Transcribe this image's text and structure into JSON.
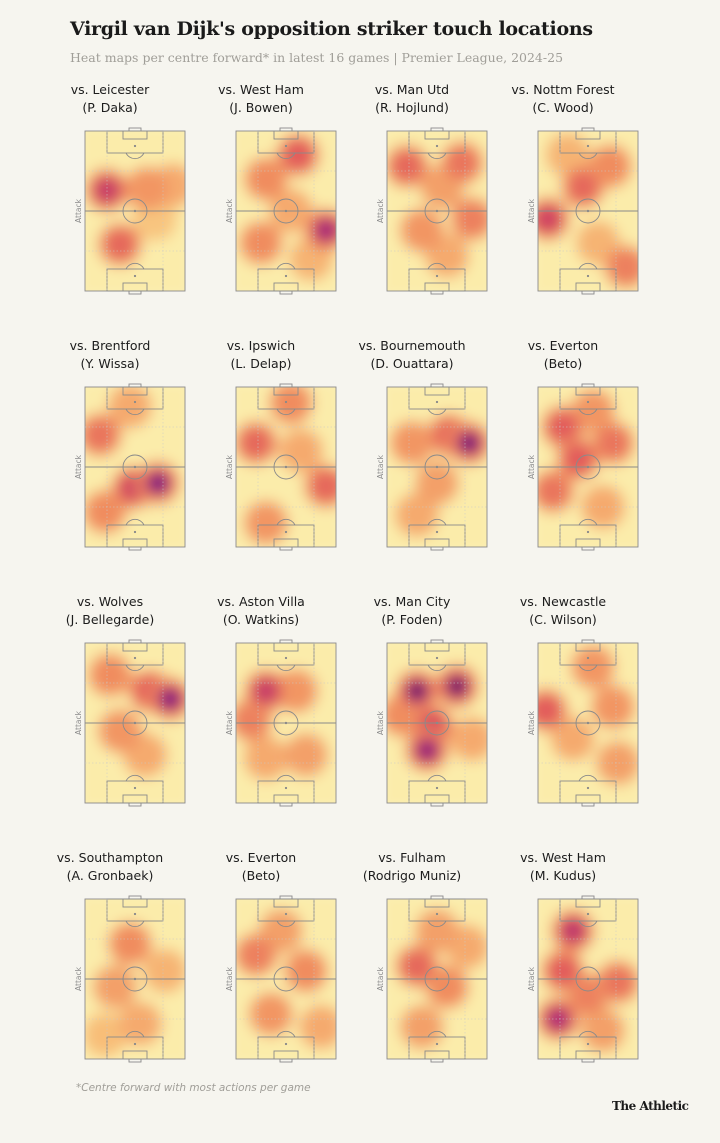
{
  "title": "Virgil van Dijk's opposition striker touch locations",
  "subtitle": "Heat maps per centre forward* in latest 16 games | Premier League, 2024-25",
  "footnote": "*Centre forward with most actions per game",
  "brand": "The Athletic",
  "attack_label": "Attack",
  "colors": {
    "background": "#f6f5ef",
    "low": "#fbe9a8",
    "mid": "#f29a63",
    "high": "#d9435f",
    "peak": "#2a0d5a"
  },
  "chart_data": [
    {
      "type": "heatmap",
      "opponent": "vs. Leicester",
      "player": "(P. Daka)",
      "hotspots": [
        {
          "x": 0.22,
          "y": 0.37,
          "w": 1.0
        },
        {
          "x": 0.35,
          "y": 0.71,
          "w": 0.75
        },
        {
          "x": 0.62,
          "y": 0.36,
          "w": 0.55
        },
        {
          "x": 0.88,
          "y": 0.34,
          "w": 0.45
        },
        {
          "x": 0.7,
          "y": 0.55,
          "w": 0.3
        }
      ]
    },
    {
      "type": "heatmap",
      "opponent": "vs. West Ham",
      "player": "(J. Bowen)",
      "hotspots": [
        {
          "x": 0.9,
          "y": 0.62,
          "w": 1.2
        },
        {
          "x": 0.62,
          "y": 0.15,
          "w": 0.8
        },
        {
          "x": 0.3,
          "y": 0.3,
          "w": 0.6
        },
        {
          "x": 0.25,
          "y": 0.7,
          "w": 0.6
        },
        {
          "x": 0.55,
          "y": 0.5,
          "w": 0.45
        },
        {
          "x": 0.75,
          "y": 0.8,
          "w": 0.4
        }
      ]
    },
    {
      "type": "heatmap",
      "opponent": "vs. Man Utd",
      "player": "(R. Hojlund)",
      "hotspots": [
        {
          "x": 0.2,
          "y": 0.22,
          "w": 0.75
        },
        {
          "x": 0.75,
          "y": 0.2,
          "w": 0.7
        },
        {
          "x": 0.85,
          "y": 0.55,
          "w": 0.65
        },
        {
          "x": 0.35,
          "y": 0.62,
          "w": 0.55
        },
        {
          "x": 0.55,
          "y": 0.35,
          "w": 0.5
        },
        {
          "x": 0.6,
          "y": 0.78,
          "w": 0.45
        }
      ]
    },
    {
      "type": "heatmap",
      "opponent": "vs. Nottm Forest",
      "player": "(C. Wood)",
      "hotspots": [
        {
          "x": 0.1,
          "y": 0.55,
          "w": 0.95
        },
        {
          "x": 0.45,
          "y": 0.35,
          "w": 0.75
        },
        {
          "x": 0.72,
          "y": 0.22,
          "w": 0.6
        },
        {
          "x": 0.88,
          "y": 0.85,
          "w": 0.65
        },
        {
          "x": 0.3,
          "y": 0.15,
          "w": 0.4
        },
        {
          "x": 0.6,
          "y": 0.7,
          "w": 0.4
        }
      ]
    },
    {
      "type": "heatmap",
      "opponent": "vs. Brentford",
      "player": "(Y. Wissa)",
      "hotspots": [
        {
          "x": 0.73,
          "y": 0.6,
          "w": 1.45
        },
        {
          "x": 0.48,
          "y": 0.63,
          "w": 0.95
        },
        {
          "x": 0.15,
          "y": 0.3,
          "w": 0.7
        },
        {
          "x": 0.2,
          "y": 0.78,
          "w": 0.6
        },
        {
          "x": 0.45,
          "y": 0.12,
          "w": 0.45
        }
      ]
    },
    {
      "type": "heatmap",
      "opponent": "vs. Ipswich",
      "player": "(L. Delap)",
      "hotspots": [
        {
          "x": 0.2,
          "y": 0.35,
          "w": 0.75
        },
        {
          "x": 0.9,
          "y": 0.62,
          "w": 0.75
        },
        {
          "x": 0.55,
          "y": 0.1,
          "w": 0.6
        },
        {
          "x": 0.3,
          "y": 0.85,
          "w": 0.55
        },
        {
          "x": 0.65,
          "y": 0.4,
          "w": 0.45
        }
      ]
    },
    {
      "type": "heatmap",
      "opponent": "vs. Bournemouth",
      "player": "(D. Ouattara)",
      "hotspots": [
        {
          "x": 0.82,
          "y": 0.35,
          "w": 1.55
        },
        {
          "x": 0.62,
          "y": 0.3,
          "w": 0.75
        },
        {
          "x": 0.25,
          "y": 0.35,
          "w": 0.55
        },
        {
          "x": 0.5,
          "y": 0.6,
          "w": 0.5
        },
        {
          "x": 0.3,
          "y": 0.8,
          "w": 0.45
        }
      ]
    },
    {
      "type": "heatmap",
      "opponent": "vs. Everton",
      "player": "(Beto)",
      "hotspots": [
        {
          "x": 0.25,
          "y": 0.25,
          "w": 0.8
        },
        {
          "x": 0.4,
          "y": 0.45,
          "w": 0.8
        },
        {
          "x": 0.15,
          "y": 0.65,
          "w": 0.7
        },
        {
          "x": 0.75,
          "y": 0.35,
          "w": 0.7
        },
        {
          "x": 0.55,
          "y": 0.15,
          "w": 0.55
        },
        {
          "x": 0.65,
          "y": 0.75,
          "w": 0.45
        }
      ]
    },
    {
      "type": "heatmap",
      "opponent": "vs. Wolves",
      "player": "(J. Bellegarde)",
      "hotspots": [
        {
          "x": 0.85,
          "y": 0.35,
          "w": 1.4
        },
        {
          "x": 0.65,
          "y": 0.3,
          "w": 0.8
        },
        {
          "x": 0.25,
          "y": 0.2,
          "w": 0.6
        },
        {
          "x": 0.35,
          "y": 0.55,
          "w": 0.55
        },
        {
          "x": 0.6,
          "y": 0.7,
          "w": 0.45
        }
      ]
    },
    {
      "type": "heatmap",
      "opponent": "vs. Aston Villa",
      "player": "(O. Watkins)",
      "hotspots": [
        {
          "x": 0.3,
          "y": 0.3,
          "w": 1.0
        },
        {
          "x": 0.15,
          "y": 0.48,
          "w": 0.65
        },
        {
          "x": 0.6,
          "y": 0.3,
          "w": 0.55
        },
        {
          "x": 0.7,
          "y": 0.7,
          "w": 0.5
        },
        {
          "x": 0.3,
          "y": 0.72,
          "w": 0.45
        }
      ]
    },
    {
      "type": "heatmap",
      "opponent": "vs. Man City",
      "player": "(P. Foden)",
      "hotspots": [
        {
          "x": 0.3,
          "y": 0.3,
          "w": 1.7
        },
        {
          "x": 0.7,
          "y": 0.27,
          "w": 1.9
        },
        {
          "x": 0.45,
          "y": 0.52,
          "w": 0.9
        },
        {
          "x": 0.4,
          "y": 0.67,
          "w": 1.3
        },
        {
          "x": 0.15,
          "y": 0.45,
          "w": 0.6
        },
        {
          "x": 0.85,
          "y": 0.6,
          "w": 0.45
        }
      ]
    },
    {
      "type": "heatmap",
      "opponent": "vs. Newcastle",
      "player": "(C. Wilson)",
      "hotspots": [
        {
          "x": 0.08,
          "y": 0.42,
          "w": 0.8
        },
        {
          "x": 0.55,
          "y": 0.15,
          "w": 0.55
        },
        {
          "x": 0.75,
          "y": 0.4,
          "w": 0.55
        },
        {
          "x": 0.35,
          "y": 0.6,
          "w": 0.45
        },
        {
          "x": 0.8,
          "y": 0.75,
          "w": 0.5
        }
      ]
    },
    {
      "type": "heatmap",
      "opponent": "vs. Southampton",
      "player": "(A. Gronbaek)",
      "hotspots": [
        {
          "x": 0.45,
          "y": 0.28,
          "w": 0.6
        },
        {
          "x": 0.3,
          "y": 0.55,
          "w": 0.5
        },
        {
          "x": 0.55,
          "y": 0.78,
          "w": 0.45
        },
        {
          "x": 0.8,
          "y": 0.45,
          "w": 0.4
        },
        {
          "x": 0.2,
          "y": 0.85,
          "w": 0.35
        }
      ]
    },
    {
      "type": "heatmap",
      "opponent": "vs. Everton",
      "player": "(Beto)",
      "hotspots": [
        {
          "x": 0.2,
          "y": 0.35,
          "w": 0.65
        },
        {
          "x": 0.7,
          "y": 0.45,
          "w": 0.6
        },
        {
          "x": 0.45,
          "y": 0.2,
          "w": 0.5
        },
        {
          "x": 0.35,
          "y": 0.72,
          "w": 0.55
        },
        {
          "x": 0.85,
          "y": 0.8,
          "w": 0.45
        }
      ]
    },
    {
      "type": "heatmap",
      "opponent": "vs. Fulham",
      "player": "(Rodrigo Muniz)",
      "hotspots": [
        {
          "x": 0.3,
          "y": 0.42,
          "w": 0.75
        },
        {
          "x": 0.6,
          "y": 0.55,
          "w": 0.6
        },
        {
          "x": 0.5,
          "y": 0.2,
          "w": 0.5
        },
        {
          "x": 0.8,
          "y": 0.3,
          "w": 0.45
        },
        {
          "x": 0.35,
          "y": 0.8,
          "w": 0.5
        }
      ]
    },
    {
      "type": "heatmap",
      "opponent": "vs. West Ham",
      "player": "(M. Kudus)",
      "hotspots": [
        {
          "x": 0.35,
          "y": 0.2,
          "w": 1.05
        },
        {
          "x": 0.2,
          "y": 0.75,
          "w": 1.15
        },
        {
          "x": 0.25,
          "y": 0.45,
          "w": 0.8
        },
        {
          "x": 0.5,
          "y": 0.6,
          "w": 0.65
        },
        {
          "x": 0.8,
          "y": 0.52,
          "w": 0.7
        },
        {
          "x": 0.65,
          "y": 0.82,
          "w": 0.5
        }
      ]
    }
  ]
}
